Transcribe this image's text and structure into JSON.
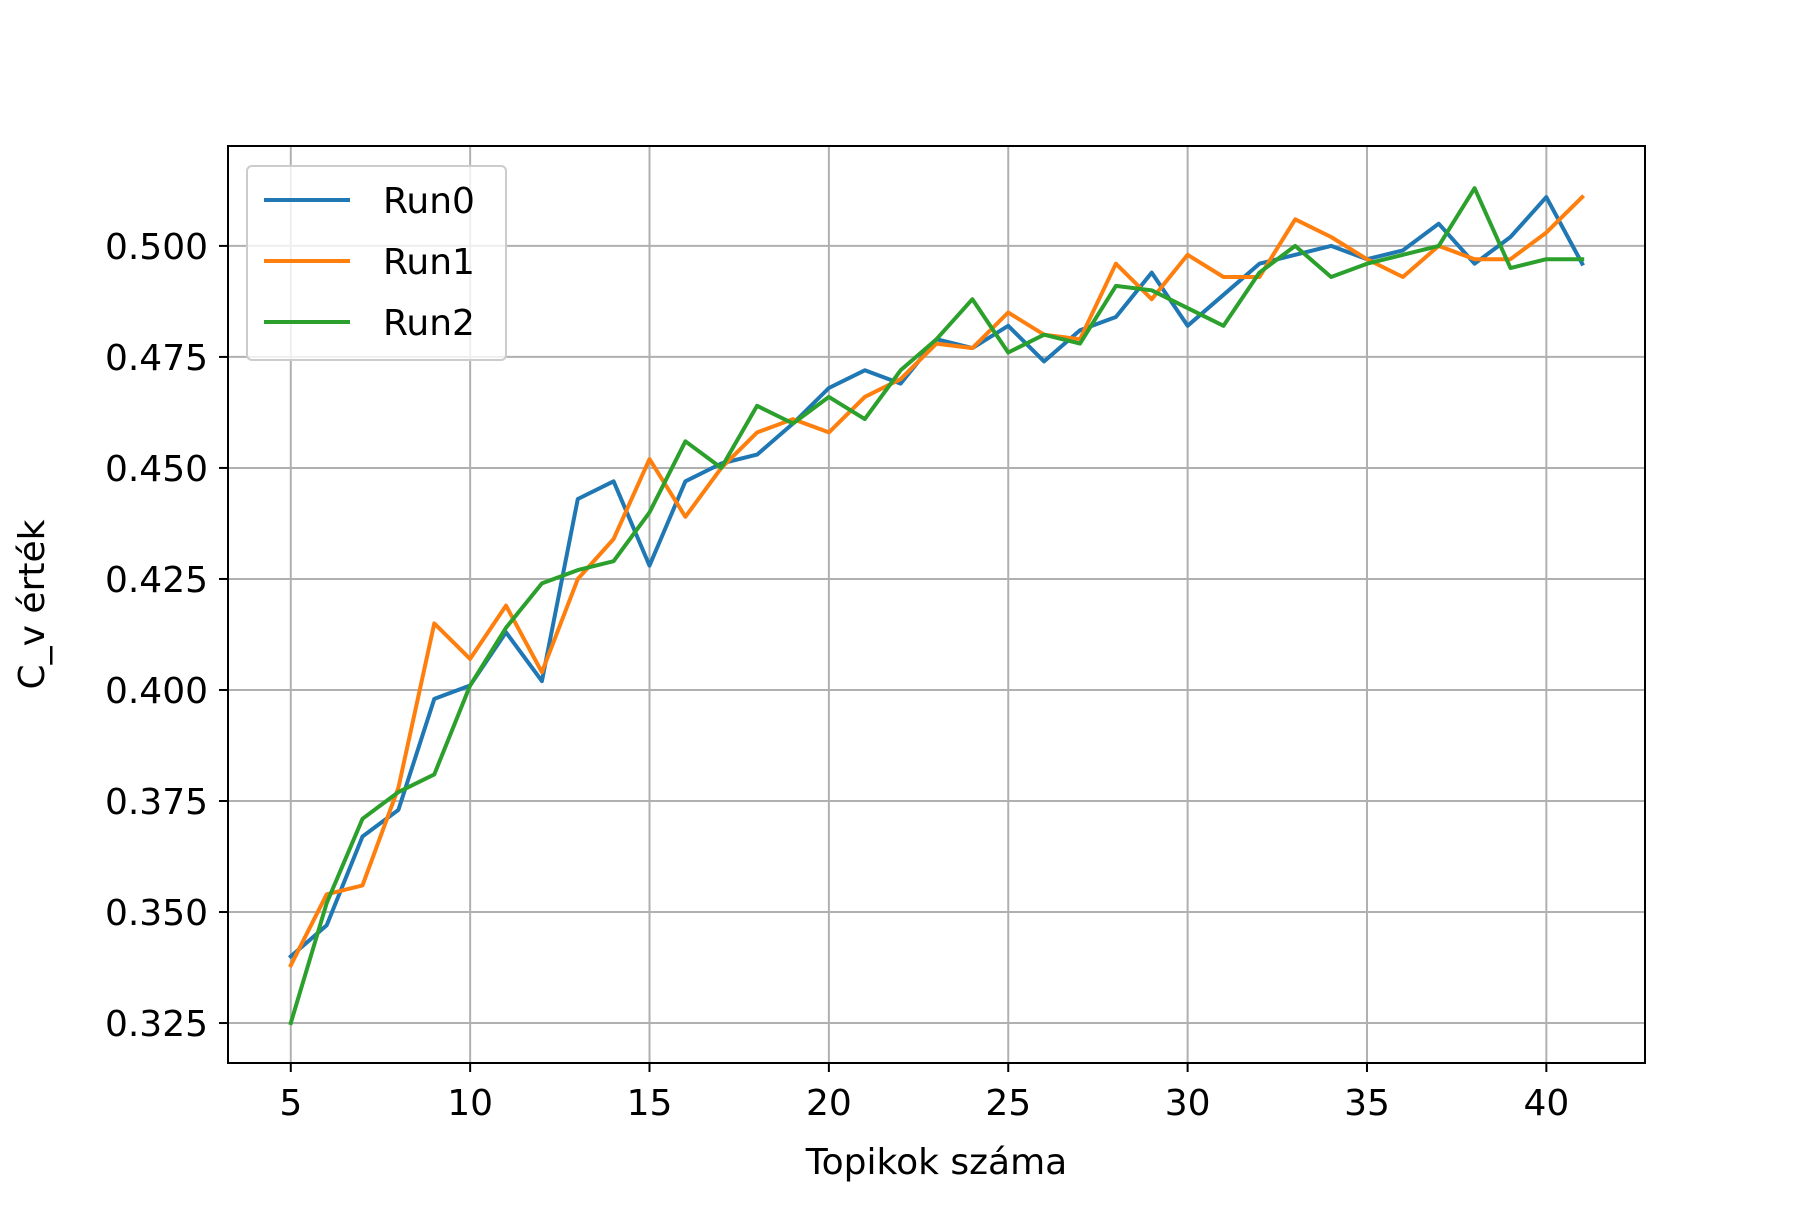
{
  "chart_data": {
    "type": "line",
    "title": "",
    "xlabel": "Topikok száma",
    "ylabel": "C_v érték",
    "xlim": [
      3.25,
      42.75
    ],
    "ylim": [
      0.316,
      0.5225
    ],
    "xticks": [
      5,
      10,
      15,
      20,
      25,
      30,
      35,
      40
    ],
    "yticks": [
      0.325,
      0.35,
      0.375,
      0.4,
      0.425,
      0.45,
      0.475,
      0.5
    ],
    "xtick_labels": [
      "5",
      "10",
      "15",
      "20",
      "25",
      "30",
      "35",
      "40"
    ],
    "ytick_labels": [
      "0.325",
      "0.350",
      "0.375",
      "0.400",
      "0.425",
      "0.450",
      "0.475",
      "0.500"
    ],
    "grid": true,
    "legend": "upper left",
    "x": [
      5,
      6,
      7,
      8,
      9,
      10,
      11,
      12,
      13,
      14,
      15,
      16,
      17,
      18,
      19,
      20,
      21,
      22,
      23,
      24,
      25,
      26,
      27,
      28,
      29,
      30,
      31,
      32,
      33,
      34,
      35,
      36,
      37,
      38,
      39,
      40,
      41
    ],
    "series": [
      {
        "name": "Run0",
        "color": "#1f77b4",
        "values": [
          0.34,
          0.347,
          0.367,
          0.373,
          0.398,
          0.401,
          0.413,
          0.402,
          0.443,
          0.447,
          0.428,
          0.447,
          0.451,
          0.453,
          0.46,
          0.468,
          0.472,
          0.469,
          0.479,
          0.477,
          0.482,
          0.474,
          0.481,
          0.484,
          0.494,
          0.482,
          0.489,
          0.496,
          0.498,
          0.5,
          0.497,
          0.499,
          0.505,
          0.496,
          0.502,
          0.511,
          0.496
        ]
      },
      {
        "name": "Run1",
        "color": "#ff7f0e",
        "values": [
          0.338,
          0.354,
          0.356,
          0.378,
          0.415,
          0.407,
          0.419,
          0.404,
          0.425,
          0.434,
          0.452,
          0.439,
          0.45,
          0.458,
          0.461,
          0.458,
          0.466,
          0.47,
          0.478,
          0.477,
          0.485,
          0.48,
          0.479,
          0.496,
          0.488,
          0.498,
          0.493,
          0.493,
          0.506,
          0.502,
          0.497,
          0.493,
          0.5,
          0.497,
          0.497,
          0.503,
          0.511
        ]
      },
      {
        "name": "Run2",
        "color": "#2ca02c",
        "values": [
          0.325,
          0.352,
          0.371,
          0.377,
          0.381,
          0.401,
          0.414,
          0.424,
          0.427,
          0.429,
          0.44,
          0.456,
          0.45,
          0.464,
          0.46,
          0.466,
          0.461,
          0.472,
          0.479,
          0.488,
          0.476,
          0.48,
          0.478,
          0.491,
          0.49,
          0.486,
          0.482,
          0.494,
          0.5,
          0.493,
          0.496,
          0.498,
          0.5,
          0.513,
          0.495,
          0.497,
          0.497
        ]
      }
    ]
  }
}
